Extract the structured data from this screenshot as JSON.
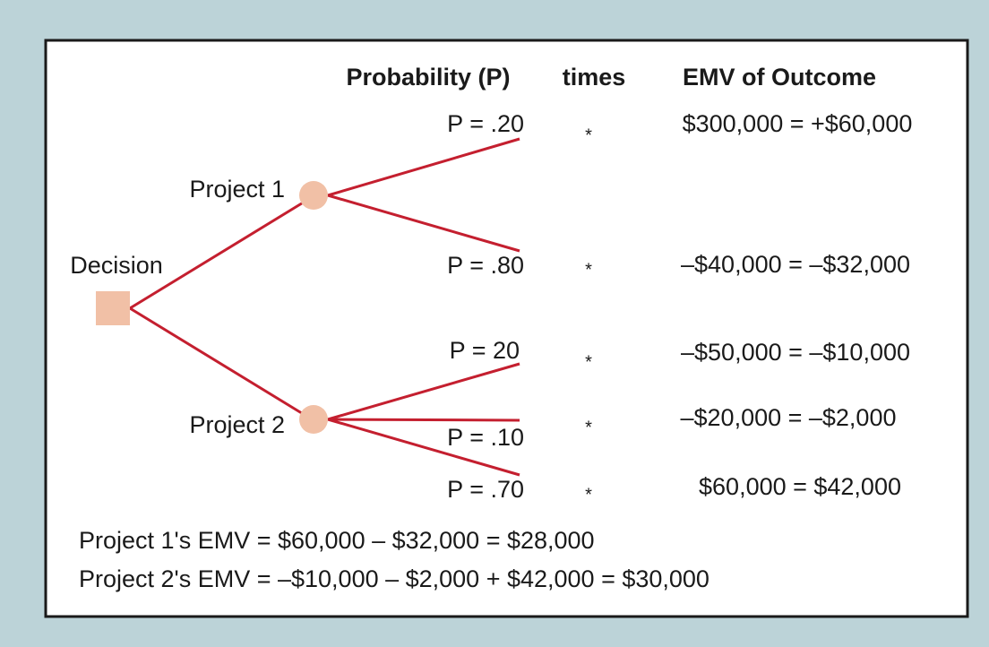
{
  "headers": {
    "probability": "Probability (P)",
    "times": "times",
    "emv": "EMV of Outcome"
  },
  "decision": "Decision",
  "projects": [
    {
      "label": "Project 1",
      "branches": [
        {
          "probability": "P = .20",
          "times": "*",
          "outcome": "$300,000 = +$60,000"
        },
        {
          "probability": "P = .80",
          "times": "*",
          "outcome": "–$40,000 = –$32,000"
        }
      ]
    },
    {
      "label": "Project 2",
      "branches": [
        {
          "probability": "P = 20",
          "times": "*",
          "outcome": "–$50,000 = –$10,000"
        },
        {
          "probability": "P = .10",
          "times": "*",
          "outcome": "–$20,000 = –$2,000"
        },
        {
          "probability": "P = .70",
          "times": "*",
          "outcome": "$60,000 = $42,000"
        }
      ]
    }
  ],
  "summary": [
    "Project 1's EMV = $60,000 – $32,000 = $28,000",
    "Project 2's EMV = –$10,000 – $2,000 + $42,000 = $30,000"
  ]
}
